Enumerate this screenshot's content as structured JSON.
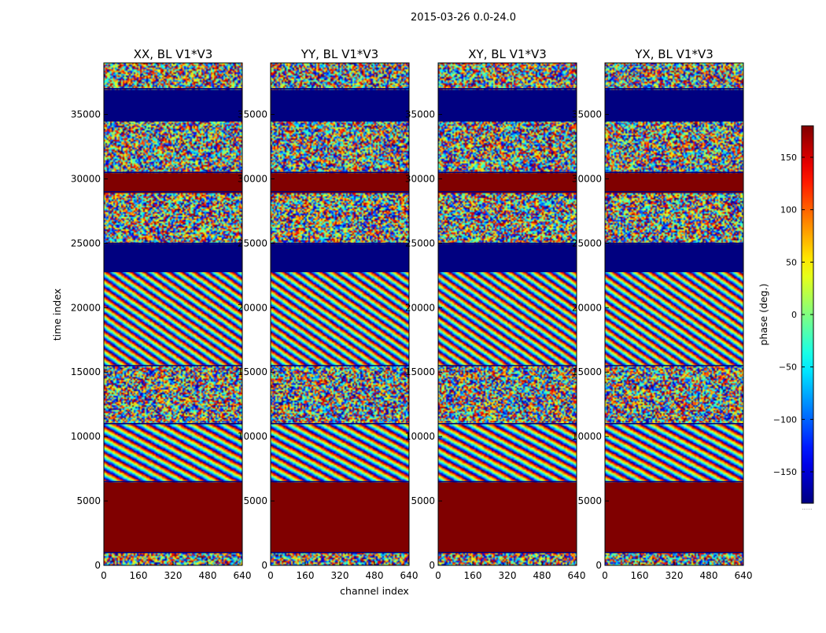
{
  "figure": {
    "suptitle": "2015-03-26 0.0-24.0"
  },
  "chart_data": {
    "type": "heatmap",
    "title": "2015-03-26 0.0-24.0",
    "xlabel": "channel index",
    "ylabel": "time index",
    "xlim": [
      0,
      640
    ],
    "ylim": [
      0,
      39000
    ],
    "x_ticks": [
      0,
      160,
      320,
      480,
      640
    ],
    "y_ticks": [
      0,
      5000,
      10000,
      15000,
      20000,
      25000,
      30000,
      35000
    ],
    "panels": [
      {
        "title": "XX, BL V1*V3",
        "seed": 11
      },
      {
        "title": "YY, BL V1*V3",
        "seed": 23
      },
      {
        "title": "XY, BL V1*V3",
        "seed": 37
      },
      {
        "title": "YX, BL V1*V3",
        "seed": 51
      }
    ],
    "colorbar": {
      "label": "phase (deg.)",
      "vmin": -180,
      "vmax": 180,
      "ticks": [
        -150,
        -100,
        -50,
        0,
        50,
        100,
        150
      ],
      "tick_labels": [
        "−150",
        "−100",
        "−50",
        "0",
        "50",
        "100",
        "150"
      ],
      "colormap": "jet",
      "footer": "......"
    },
    "bands": [
      {
        "t0": 0,
        "t1": 1000,
        "kind": "noise"
      },
      {
        "t0": 1000,
        "t1": 6500,
        "kind": "const",
        "value": 180
      },
      {
        "t0": 6500,
        "t1": 11000,
        "kind": "fringe"
      },
      {
        "t0": 11000,
        "t1": 15500,
        "kind": "noise"
      },
      {
        "t0": 15500,
        "t1": 22800,
        "kind": "fringe"
      },
      {
        "t0": 22800,
        "t1": 25000,
        "kind": "const",
        "value": -180
      },
      {
        "t0": 25000,
        "t1": 29000,
        "kind": "noise"
      },
      {
        "t0": 29000,
        "t1": 30500,
        "kind": "const",
        "value": 180
      },
      {
        "t0": 30500,
        "t1": 34500,
        "kind": "noise"
      },
      {
        "t0": 34500,
        "t1": 37000,
        "kind": "const",
        "value": -180
      },
      {
        "t0": 37000,
        "t1": 39000,
        "kind": "noise"
      }
    ]
  }
}
